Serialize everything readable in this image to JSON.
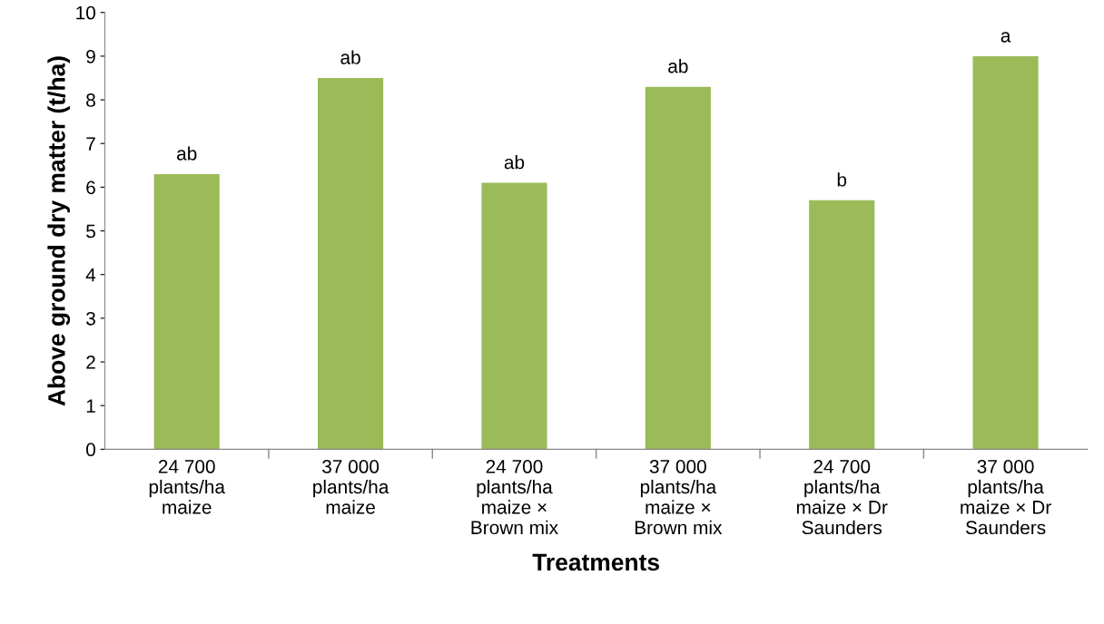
{
  "chart_data": {
    "type": "bar",
    "xlabel": "Treatments",
    "ylabel": "Above ground dry matter (t/ha)",
    "categories": [
      "24 700\nplants/ha\nmaize",
      "37 000\nplants/ha\nmaize",
      "24 700\nplants/ha\nmaize ×\nBrown mix",
      "37 000\nplants/ha\nmaize ×\nBrown mix",
      "24 700\nplants/ha\nmaize × Dr\nSaunders",
      "37 000\nplants/ha\nmaize × Dr\nSaunders"
    ],
    "values": [
      6.3,
      8.5,
      6.1,
      8.3,
      5.7,
      9.0
    ],
    "color": "#9bbb59",
    "ylim": [
      0,
      10
    ],
    "yticks": [
      0,
      1,
      2,
      3,
      4,
      5,
      6,
      7,
      8,
      9,
      10
    ],
    "grid": false,
    "legend": false,
    "annotations": [
      {
        "text": "ab",
        "x": "24 700\nplants/ha\nmaize",
        "y": 6.3
      },
      {
        "text": "ab",
        "x": "37 000\nplants/ha\nmaize",
        "y": 8.5
      },
      {
        "text": "ab",
        "x": "24 700\nplants/ha\nmaize ×\nBrown mix",
        "y": 6.1
      },
      {
        "text": "ab",
        "x": "37 000\nplants/ha\nmaize ×\nBrown mix",
        "y": 8.3
      },
      {
        "text": "b",
        "x": "24 700\nplants/ha\nmaize × Dr\nSaunders",
        "y": 5.7
      },
      {
        "text": "a",
        "x": "37 000\nplants/ha\nmaize × Dr\nSaunders",
        "y": 9.0
      }
    ]
  }
}
